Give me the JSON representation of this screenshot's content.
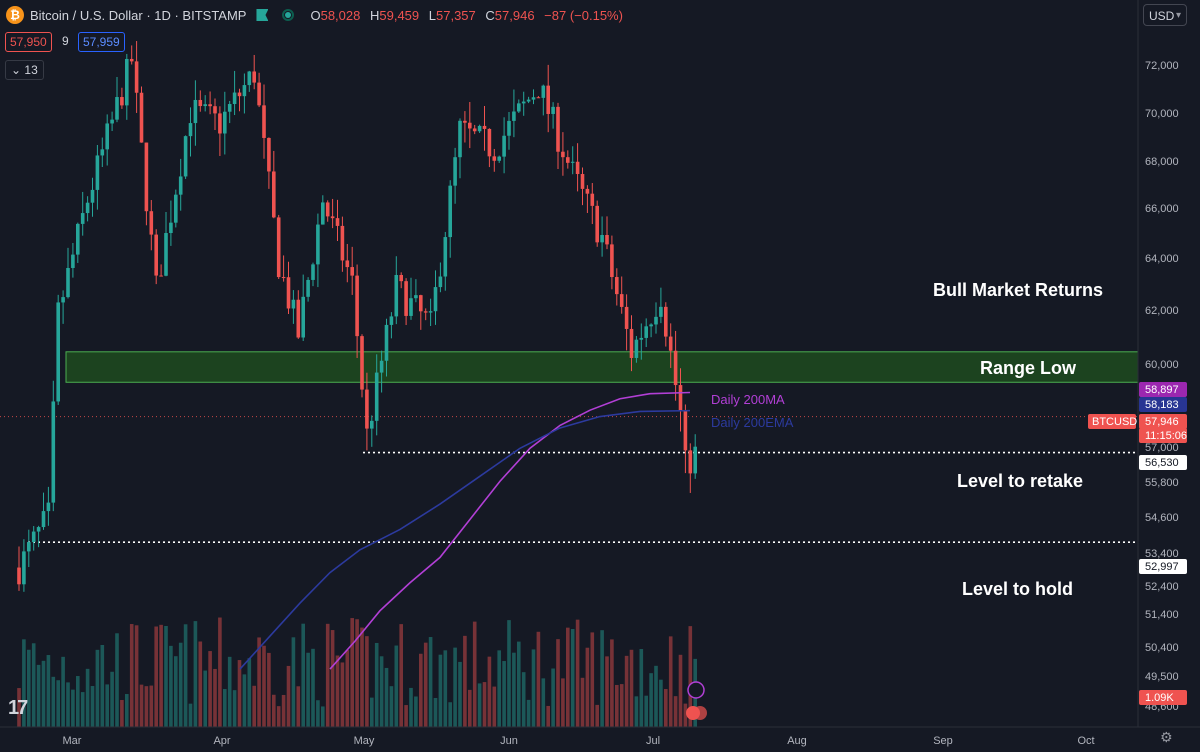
{
  "header": {
    "symbol_title": "Bitcoin / U.S. Dollar · 1D · BITSTAMP",
    "logo_letter": "₿",
    "o_label": "O",
    "o_value": "58,028",
    "h_label": "H",
    "h_value": "59,459",
    "l_label": "L",
    "l_value": "57,357",
    "c_label": "C",
    "c_value": "57,946",
    "change": "−87 (−0.15%)",
    "bid": "57,950",
    "spread": "9",
    "ask": "57,959",
    "collapse_label": "13",
    "currency": "USD"
  },
  "colors": {
    "bg": "#151924",
    "up": "#26a69a",
    "down": "#ef5350",
    "ma": "#b23fd6",
    "ema": "#2c3a9e",
    "zone_fill": "#1d4b1f",
    "zone_border": "#4caf50"
  },
  "chart_data": {
    "type": "candlestick",
    "title": "Bitcoin / U.S. Dollar · 1D · BITSTAMP",
    "x_labels": [
      "Mar",
      "Apr",
      "May",
      "Jun",
      "Jul",
      "Aug",
      "Sep",
      "Oct"
    ],
    "y_ticks": [
      "72,000",
      "70,000",
      "68,000",
      "66,000",
      "64,000",
      "62,000",
      "60,000",
      "57,000",
      "55,800",
      "54,600",
      "53,400",
      "52,400",
      "51,400",
      "50,400",
      "49,500",
      "48,600"
    ],
    "y_range": [
      48000,
      73000
    ],
    "candles_price_path": [
      {
        "t": "2024-02-20",
        "c": 52000
      },
      {
        "t": "2024-02-26",
        "c": 54000
      },
      {
        "t": "2024-02-28",
        "c": 62000
      },
      {
        "t": "2024-03-05",
        "c": 66500
      },
      {
        "t": "2024-03-08",
        "c": 68300
      },
      {
        "t": "2024-03-14",
        "c": 72000
      },
      {
        "t": "2024-03-19",
        "c": 63000
      },
      {
        "t": "2024-03-26",
        "c": 70000
      },
      {
        "t": "2024-04-01",
        "c": 69500
      },
      {
        "t": "2024-04-08",
        "c": 71500
      },
      {
        "t": "2024-04-13",
        "c": 64000
      },
      {
        "t": "2024-04-17",
        "c": 61200
      },
      {
        "t": "2024-04-22",
        "c": 66500
      },
      {
        "t": "2024-04-28",
        "c": 63200
      },
      {
        "t": "2024-05-01",
        "c": 57200
      },
      {
        "t": "2024-05-07",
        "c": 63000
      },
      {
        "t": "2024-05-14",
        "c": 61500
      },
      {
        "t": "2024-05-20",
        "c": 69200
      },
      {
        "t": "2024-05-27",
        "c": 68500
      },
      {
        "t": "2024-06-05",
        "c": 71000
      },
      {
        "t": "2024-06-12",
        "c": 67500
      },
      {
        "t": "2024-06-18",
        "c": 65000
      },
      {
        "t": "2024-06-24",
        "c": 60500
      },
      {
        "t": "2024-06-30",
        "c": 62800
      },
      {
        "t": "2024-07-04",
        "c": 58000
      },
      {
        "t": "2024-07-05",
        "c": 56000
      },
      {
        "t": "2024-07-08",
        "c": 56700
      },
      {
        "t": "2024-07-10",
        "c": 57946
      }
    ],
    "series": [
      {
        "name": "Daily 200MA",
        "color": "#b23fd6",
        "points": [
          [
            330,
            48000
          ],
          [
            355,
            49100
          ],
          [
            380,
            50300
          ],
          [
            410,
            51400
          ],
          [
            440,
            52400
          ],
          [
            470,
            53900
          ],
          [
            500,
            55400
          ],
          [
            530,
            56700
          ],
          [
            560,
            57600
          ],
          [
            590,
            58200
          ],
          [
            620,
            58650
          ],
          [
            650,
            58850
          ],
          [
            690,
            58897
          ]
        ]
      },
      {
        "name": "Daily 200EMA",
        "color": "#2c3a9e",
        "points": [
          [
            240,
            48000
          ],
          [
            270,
            49300
          ],
          [
            300,
            50600
          ],
          [
            330,
            51800
          ],
          [
            360,
            52700
          ],
          [
            400,
            53500
          ],
          [
            440,
            54500
          ],
          [
            480,
            55600
          ],
          [
            520,
            56700
          ],
          [
            560,
            57500
          ],
          [
            600,
            57950
          ],
          [
            640,
            58150
          ],
          [
            690,
            58183
          ]
        ]
      }
    ],
    "levels": [
      {
        "label": "Range Low",
        "from": 59300,
        "to": 60500,
        "type": "zone"
      },
      {
        "label": "Level to retake",
        "value": 56530,
        "type": "dotted"
      },
      {
        "label": "Level to hold",
        "value": 52997,
        "type": "dotted"
      }
    ],
    "annotations": [
      "Bull Market Returns",
      "Range Low",
      "Level to retake",
      "Level to hold",
      "Daily 200MA",
      "Daily 200EMA"
    ],
    "price_badges": [
      {
        "label": "58,897",
        "color": "#9c27b0"
      },
      {
        "label": "58,183",
        "color": "#283593"
      },
      {
        "label": "57,946",
        "color": "#ef5350"
      },
      {
        "label": "11:15:06",
        "color": "#ef5350"
      },
      {
        "label": "56,530",
        "color": "#ffffff"
      },
      {
        "label": "52,997",
        "color": "#ffffff"
      },
      {
        "label": "1.09K",
        "color": "#ef5350"
      }
    ],
    "ticker_tag": "BTCUSD"
  }
}
